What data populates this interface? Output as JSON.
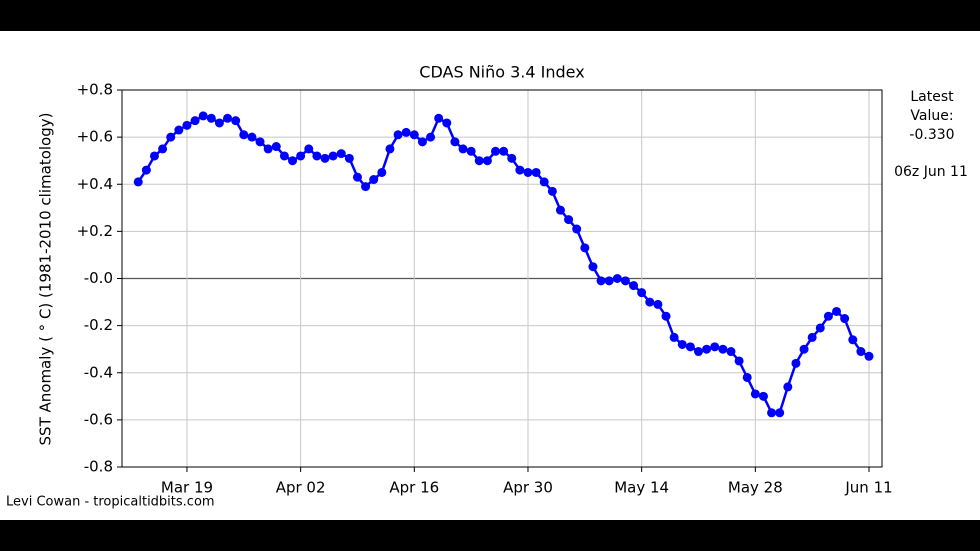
{
  "chart_data": {
    "type": "line",
    "title": "CDAS Niño 3.4 Index",
    "ylabel": "SST Anomaly ( ° C) (1981-2010 climatology)",
    "annotation": [
      "Latest",
      "Value:",
      "-0.330"
    ],
    "timestamp": "06z Jun 11",
    "credit": "Levi Cowan - tropicaltidbits.com",
    "categories": [
      null,
      null,
      null,
      null,
      null,
      null,
      "Mar 19",
      null,
      null,
      null,
      null,
      null,
      null,
      null,
      null,
      null,
      null,
      null,
      null,
      null,
      "Apr 02",
      null,
      null,
      null,
      null,
      null,
      null,
      null,
      null,
      null,
      null,
      null,
      null,
      null,
      "Apr 16",
      null,
      null,
      null,
      null,
      null,
      null,
      null,
      null,
      null,
      null,
      null,
      null,
      null,
      "Apr 30",
      null,
      null,
      null,
      null,
      null,
      null,
      null,
      null,
      null,
      null,
      null,
      null,
      null,
      "May 14",
      null,
      null,
      null,
      null,
      null,
      null,
      null,
      null,
      null,
      null,
      null,
      null,
      null,
      "May 28",
      null,
      null,
      null,
      null,
      null,
      null,
      null,
      null,
      null,
      null,
      null,
      null,
      null,
      "Jun 11"
    ],
    "series": [
      {
        "name": "Niño 3.4",
        "color": "#0000ff",
        "values": [
          0.41,
          0.46,
          0.52,
          0.55,
          0.6,
          0.63,
          0.65,
          0.67,
          0.69,
          0.68,
          0.66,
          0.68,
          0.67,
          0.61,
          0.6,
          0.58,
          0.55,
          0.56,
          0.52,
          0.5,
          0.52,
          0.55,
          0.52,
          0.51,
          0.52,
          0.53,
          0.51,
          0.43,
          0.39,
          0.42,
          0.45,
          0.55,
          0.61,
          0.62,
          0.61,
          0.58,
          0.6,
          0.68,
          0.66,
          0.58,
          0.55,
          0.54,
          0.5,
          0.5,
          0.54,
          0.54,
          0.51,
          0.46,
          0.45,
          0.45,
          0.41,
          0.37,
          0.29,
          0.25,
          0.21,
          0.13,
          0.05,
          -0.01,
          -0.01,
          0.0,
          -0.01,
          -0.03,
          -0.06,
          -0.1,
          -0.11,
          -0.16,
          -0.25,
          -0.28,
          -0.29,
          -0.31,
          -0.3,
          -0.29,
          -0.3,
          -0.31,
          -0.35,
          -0.42,
          -0.49,
          -0.5,
          -0.57,
          -0.57,
          -0.46,
          -0.36,
          -0.3,
          -0.25,
          -0.21,
          -0.16,
          -0.14,
          -0.17,
          -0.26,
          -0.31,
          -0.33
        ]
      }
    ],
    "ylim": [
      -0.8,
      0.8
    ],
    "yticks": [
      {
        "value": 0.8,
        "label": "+0.8"
      },
      {
        "value": 0.6,
        "label": "+0.6"
      },
      {
        "value": 0.4,
        "label": "+0.4"
      },
      {
        "value": 0.2,
        "label": "+0.2"
      },
      {
        "value": 0,
        "label": "-0.0"
      },
      {
        "value": -0.2,
        "label": "-0.2"
      },
      {
        "value": -0.4,
        "label": "-0.4"
      },
      {
        "value": -0.6,
        "label": "-0.6"
      },
      {
        "value": -0.8,
        "label": "-0.8"
      }
    ],
    "grid": true
  }
}
